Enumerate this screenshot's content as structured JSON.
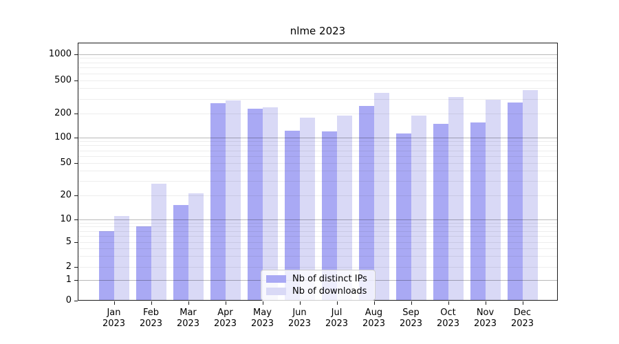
{
  "figure": {
    "title": "nlme 2023"
  },
  "chart_data": {
    "type": "bar",
    "title": "nlme 2023",
    "xlabel": "",
    "ylabel": "",
    "scale": "log1p",
    "grid": true,
    "legend_position": "lower center",
    "categories": [
      "Jan",
      "Feb",
      "Mar",
      "Apr",
      "May",
      "Jun",
      "Jul",
      "Aug",
      "Sep",
      "Oct",
      "Nov",
      "Dec"
    ],
    "category_year": "2023",
    "yticks": [
      0,
      1,
      2,
      5,
      10,
      20,
      50,
      100,
      200,
      500,
      1000
    ],
    "ylim": [
      0,
      1300
    ],
    "series": [
      {
        "name": "Nb of distinct IPs",
        "color": "#a9a9f4",
        "values": [
          7,
          8,
          15,
          265,
          228,
          122,
          118,
          245,
          112,
          148,
          153,
          270
        ]
      },
      {
        "name": "Nb of downloads",
        "color": "#d9d9f6",
        "values": [
          11,
          28,
          21,
          287,
          236,
          178,
          190,
          355,
          187,
          318,
          293,
          380
        ]
      }
    ]
  }
}
